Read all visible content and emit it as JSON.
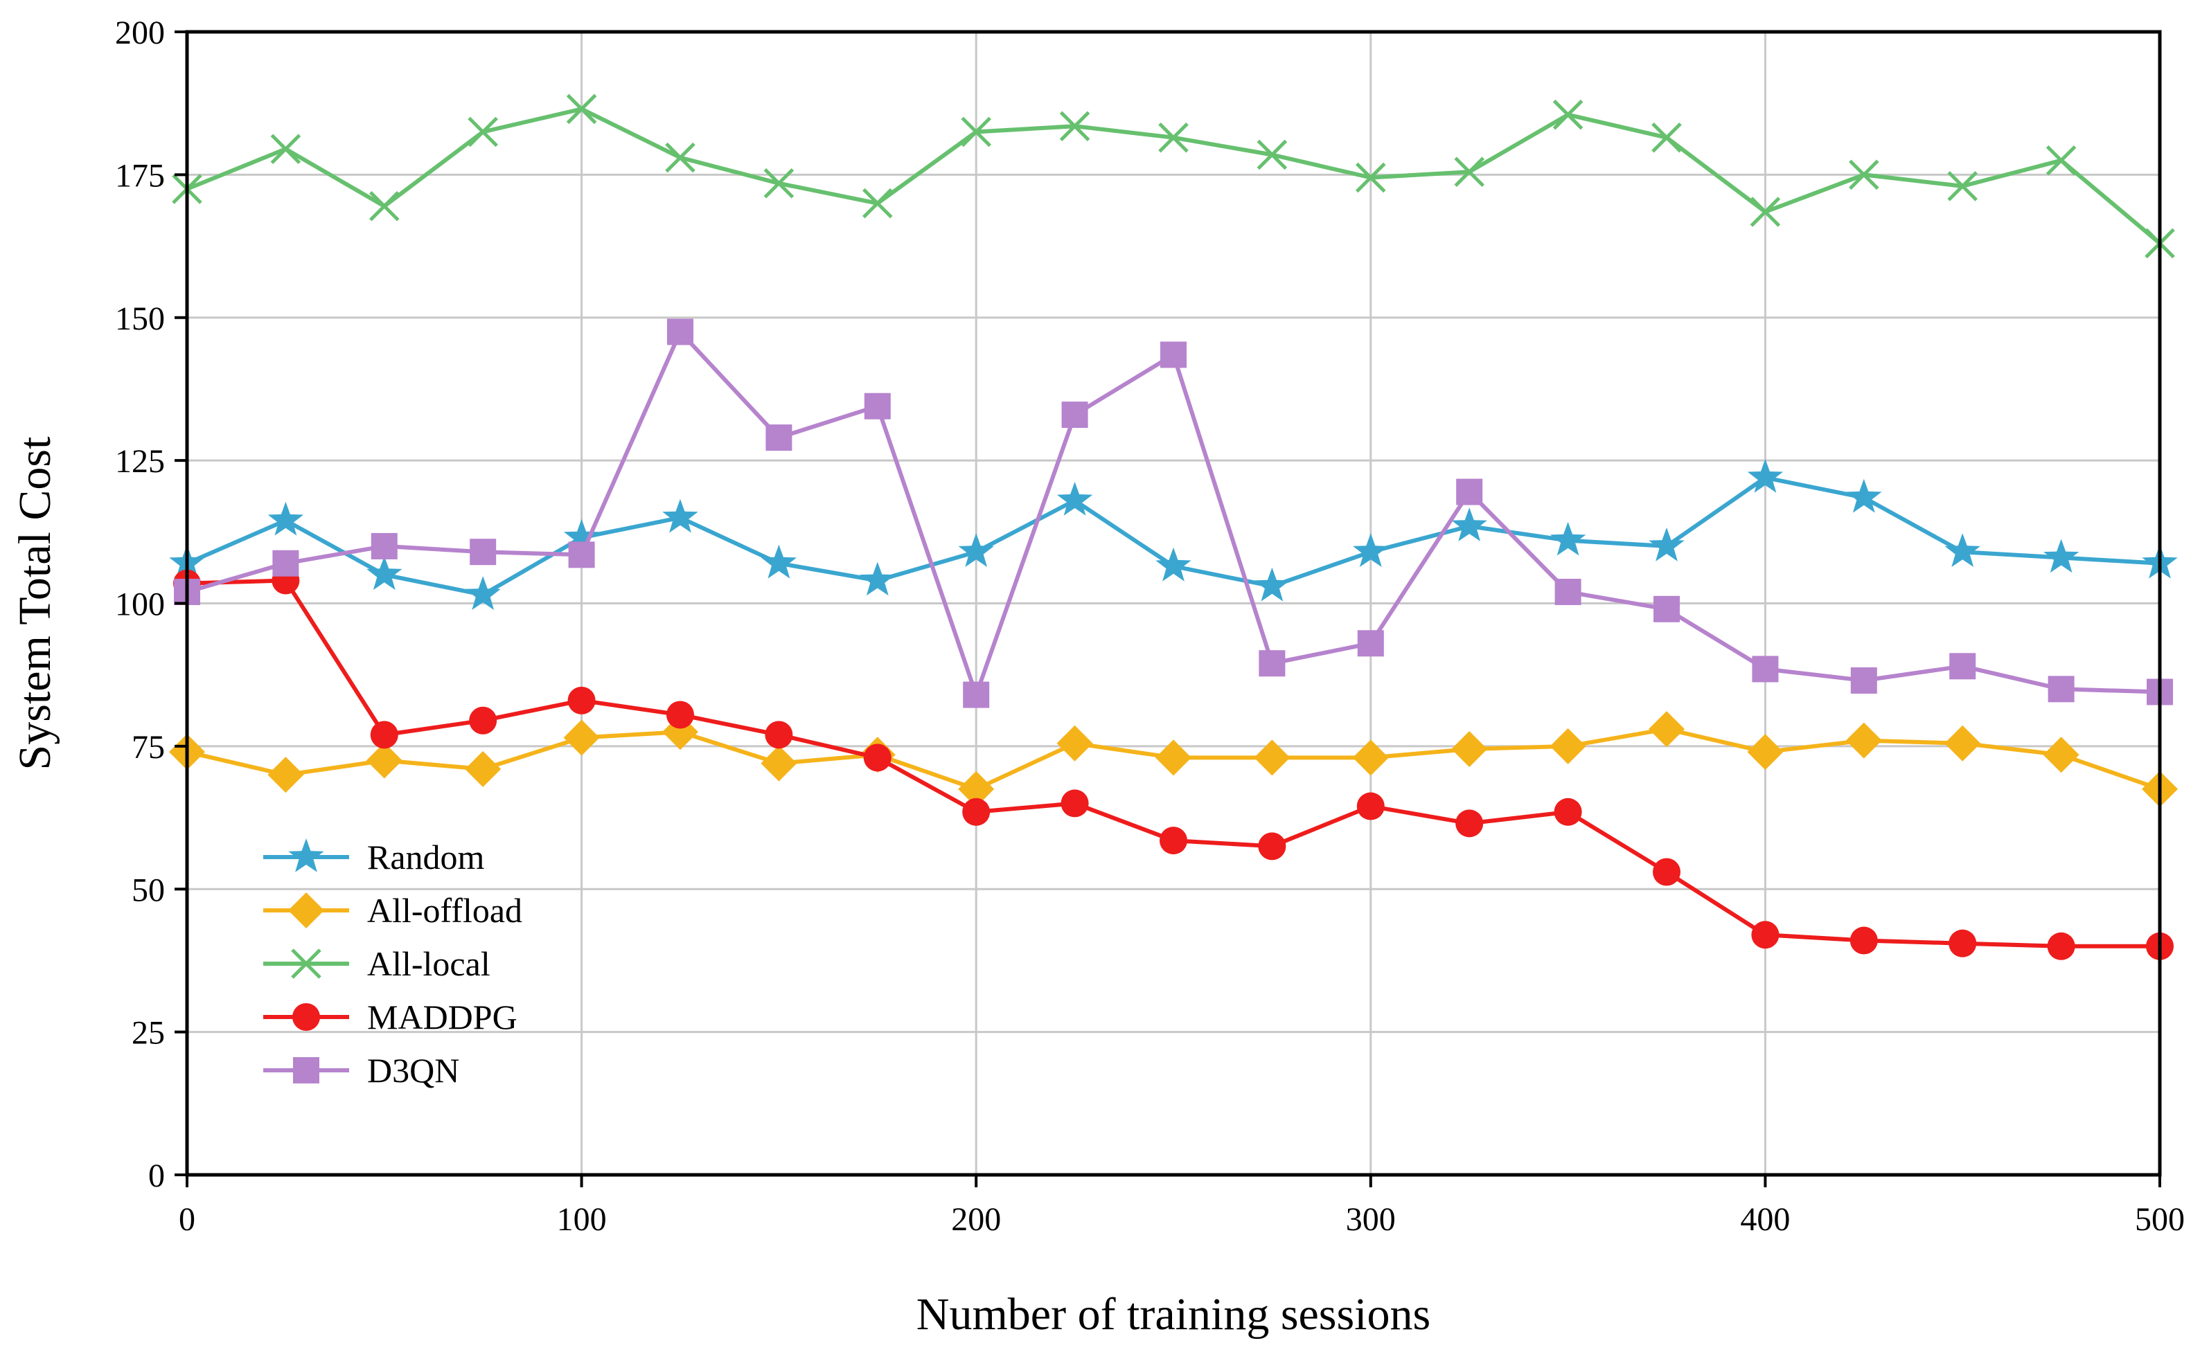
{
  "chart_data": {
    "type": "line",
    "title": "",
    "xlabel": "Number of training sessions",
    "ylabel": "System Total Cost",
    "xlim": [
      0,
      500
    ],
    "ylim": [
      0,
      200
    ],
    "xticks": [
      0,
      100,
      200,
      300,
      400,
      500
    ],
    "yticks": [
      0,
      25,
      50,
      75,
      100,
      125,
      150,
      175,
      200
    ],
    "grid": true,
    "legend_position": "lower-left",
    "x": [
      0,
      25,
      50,
      75,
      100,
      125,
      150,
      175,
      200,
      225,
      250,
      275,
      300,
      325,
      350,
      375,
      400,
      425,
      450,
      475,
      500
    ],
    "series": [
      {
        "name": "Random",
        "color": "#3aa6d0",
        "marker": "star",
        "values": [
          107,
          114.5,
          105,
          101.5,
          111.5,
          115,
          107,
          104,
          109,
          118,
          106.5,
          103,
          109,
          113.5,
          111,
          110,
          122,
          118.5,
          109,
          108,
          107
        ]
      },
      {
        "name": "All-offload",
        "color": "#f5b31a",
        "marker": "diamond",
        "values": [
          74,
          70,
          72.5,
          71,
          76.5,
          77.5,
          72,
          73.5,
          67.5,
          75.5,
          73,
          73,
          73,
          74.5,
          75,
          78,
          74,
          76,
          75.5,
          73.5,
          67.5
        ]
      },
      {
        "name": "All-local",
        "color": "#66c06e",
        "marker": "x",
        "values": [
          172.5,
          179.5,
          169.5,
          182.5,
          186.5,
          178,
          173.5,
          170,
          182.5,
          183.5,
          181.5,
          178.5,
          174.5,
          175.5,
          185.5,
          181.5,
          168.5,
          175,
          173,
          177.5,
          163
        ]
      },
      {
        "name": "MADDPG",
        "color": "#ee1c1c",
        "marker": "circle",
        "values": [
          103.5,
          104,
          77,
          79.5,
          83,
          80.5,
          77,
          73,
          63.5,
          65,
          58.5,
          57.5,
          64.5,
          61.5,
          63.5,
          53,
          42,
          41,
          40.5,
          40,
          40
        ]
      },
      {
        "name": "D3QN",
        "color": "#b683cd",
        "marker": "square",
        "values": [
          102,
          107,
          110,
          109,
          108.5,
          147.5,
          129,
          134.5,
          84,
          133,
          143.5,
          89.5,
          93,
          119.5,
          102,
          99,
          88.5,
          86.5,
          89,
          85,
          84.5
        ]
      }
    ]
  }
}
